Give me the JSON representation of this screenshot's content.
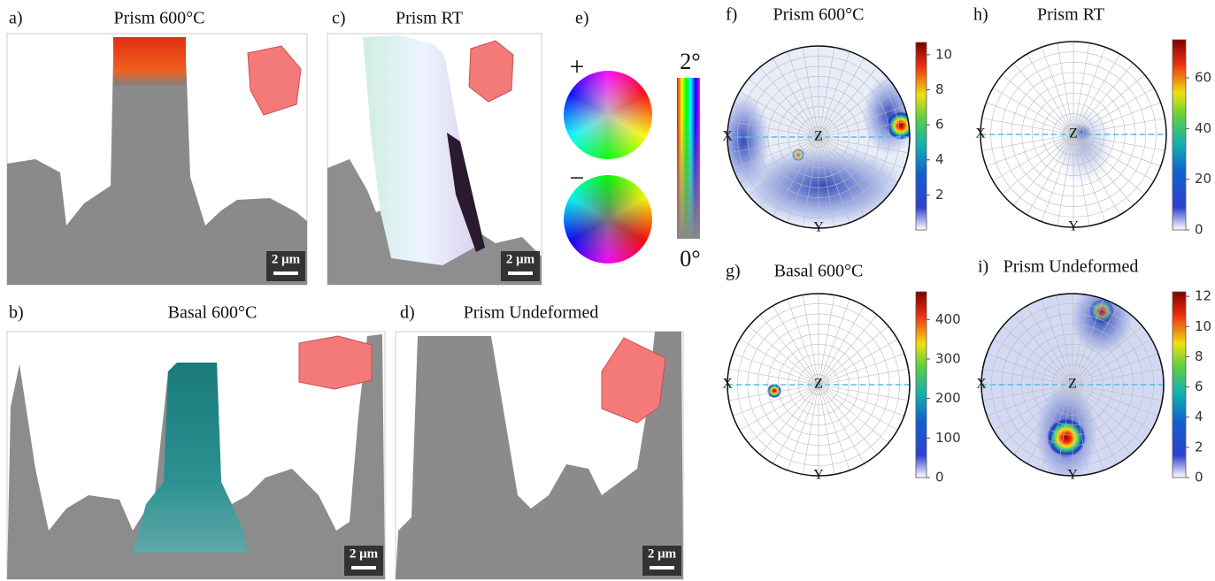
{
  "panels": [
    {
      "label": "a)",
      "title": "Prism 600°C",
      "scale_bar": "2 μm"
    },
    {
      "label": "b)",
      "title": "Basal 600°C",
      "scale_bar": "2 μm"
    },
    {
      "label": "c)",
      "title": "Prism RT",
      "scale_bar": "2 μm"
    },
    {
      "label": "d)",
      "title": "Prism Undeformed",
      "scale_bar": "2 μm"
    }
  ],
  "legend": {
    "label": "e)",
    "plus": "+",
    "minus": "−",
    "max": "2°",
    "min": "0°"
  },
  "pole_figures": [
    {
      "label": "f)",
      "title": "Prism 600°C",
      "axes": [
        "X",
        "Z",
        "Y"
      ],
      "colorbar_range": [
        0,
        10.7
      ],
      "colorbar_ticks": [
        2,
        4,
        6,
        8,
        10
      ]
    },
    {
      "label": "h)",
      "title": "Prism RT",
      "axes": [
        "X",
        "Z",
        "Y"
      ],
      "colorbar_range": [
        0,
        75
      ],
      "colorbar_ticks": [
        0,
        20,
        40,
        60
      ]
    },
    {
      "label": "g)",
      "title": "Basal 600°C",
      "axes": [
        "X",
        "Z",
        "Y"
      ],
      "colorbar_range": [
        0,
        470
      ],
      "colorbar_ticks": [
        0,
        100,
        200,
        300,
        400
      ]
    },
    {
      "label": "i)",
      "title": "Prism Undeformed",
      "axes": [
        "X",
        "Z",
        "Y"
      ],
      "colorbar_range": [
        0,
        12.3
      ],
      "colorbar_ticks": [
        0,
        2,
        4,
        6,
        8,
        10,
        12
      ]
    }
  ]
}
